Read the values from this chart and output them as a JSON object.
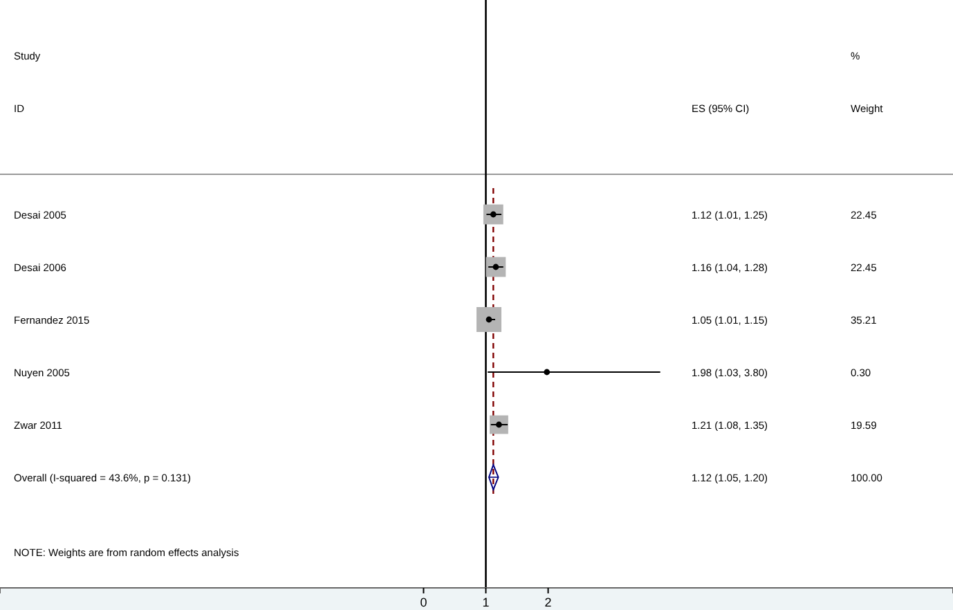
{
  "chart_data": {
    "type": "bubble",
    "orientation": "horizontal",
    "categories": [
      "Desai 2005",
      "Desai 2006",
      "Fernandez 2015",
      "Nuyen 2005",
      "Zwar 2011",
      "Overall  (I-squared = 43.6%, p = 0.131)"
    ],
    "series": [
      {
        "marker": "square",
        "color": "#b4b4b4",
        "values": [
          1.12,
          1.16,
          1.05,
          1.98,
          1.21,
          null
        ],
        "errors": [
          [
            1.01,
            1.25
          ],
          [
            1.04,
            1.28
          ],
          [
            1.01,
            1.15
          ],
          [
            1.03,
            3.8
          ],
          [
            1.08,
            1.35
          ],
          null
        ],
        "sizes": [
          0.638,
          0.638,
          1,
          0.0085,
          0.556,
          null
        ]
      },
      {
        "type": "scatter",
        "marker": "diamond",
        "color": "#000080",
        "values": [
          null,
          null,
          null,
          null,
          null,
          1.12
        ],
        "errors": [
          null,
          null,
          null,
          null,
          null,
          [
            1.05,
            1.2
          ]
        ]
      }
    ],
    "xlim": [
      -6.8,
      8.5
    ],
    "xticks": [
      0,
      1,
      2
    ],
    "ref_lines": [
      {
        "axis": "x",
        "value": 1,
        "color": "#000000",
        "line_style": "solid"
      },
      {
        "axis": "x",
        "value": 1.12,
        "color": "#800000",
        "line_style": "dashed"
      }
    ],
    "annotations": [
      "Study",
      "ID",
      "ES (95% CI)",
      "%",
      "Weight",
      "NOTE: Weights are from random effects analysis",
      "22.45",
      "22.45",
      "35.21",
      "0.30",
      "19.59",
      "100.00",
      "1.12 (1.01, 1.25)",
      "1.16 (1.04, 1.28)",
      "1.05 (1.01, 1.15)",
      "1.98 (1.03, 3.80)",
      "1.21 (1.08, 1.35)",
      "1.12 (1.05, 1.20)"
    ],
    "grid": false
  }
}
